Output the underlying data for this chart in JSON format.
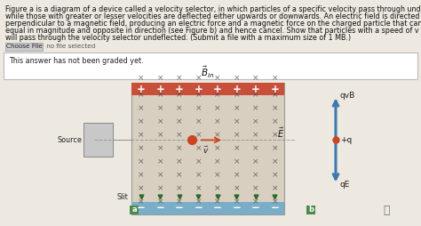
{
  "bg_color": "#ede8e0",
  "text_lines": [
    "Figure a is a diagram of a device called a velocity selector, in which particles of a specific velocity pass through undeflected",
    "while those with greater or lesser velocities are deflected either upwards or downwards. An electric field is directed",
    "perpendicular to a magnetic field, producing an electric force and a magnetic force on the charged particle that can be",
    "equal in magnitude and opposite in direction (see Figure b) and hence cancel. Show that particles with a speed of v = E/B",
    "will pass through the velocity selector undeflected. (Submit a file with a maximum size of 1 MB.)"
  ],
  "text_fontsize": 5.8,
  "choosefile_label": "Choose File",
  "choosefile_text": " no file selected",
  "answer_text": "This answer has not been graded yet.",
  "source_label": "Source",
  "slit_label": "Slit",
  "qvB_label": "qvB",
  "plus_q_label": "+q",
  "qE_label": "qE",
  "label_a": "a",
  "label_b": "b",
  "top_plate_color": "#c8503a",
  "bottom_plate_color": "#7aaec8",
  "region_bg": "#d8cfc0",
  "x_color": "#444444",
  "particle_color": "#cc4422",
  "arrow_color_red": "#cc4422",
  "arrow_color_blue": "#3a7ab0",
  "dashed_color": "#888888",
  "green_label_bg": "#4a8a4a",
  "white": "#ffffff",
  "answer_box_bg": "#ffffff",
  "answer_box_edge": "#bbbbbb",
  "choosefile_btn_bg": "#cccccc",
  "choosefile_btn_edge": "#999999"
}
